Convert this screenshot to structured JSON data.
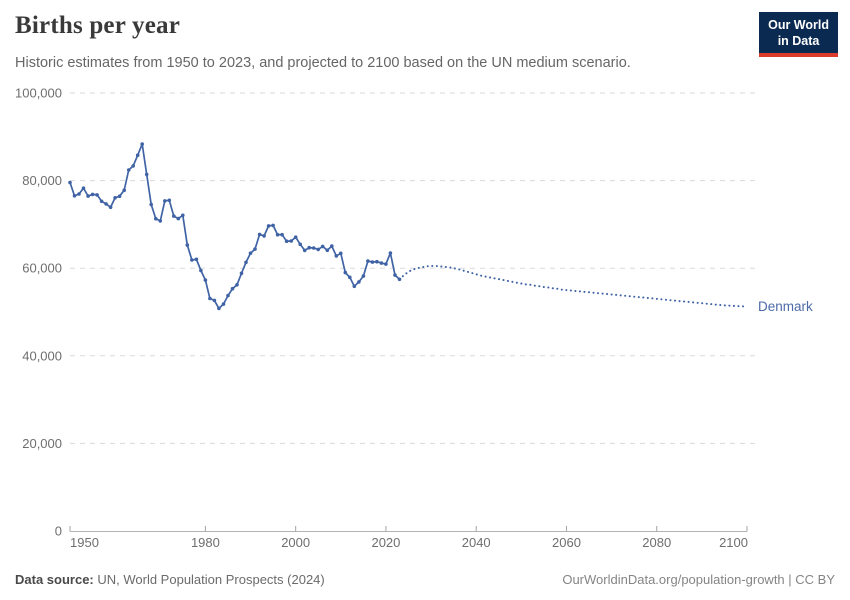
{
  "header": {
    "title": "Births per year",
    "subtitle": "Historic estimates from 1950 to 2023, and projected to 2100 based on the UN medium scenario.",
    "logo": {
      "line1": "Our World",
      "line2": "in Data"
    }
  },
  "footer": {
    "source_label": "Data source:",
    "source_text": " UN, World Population Prospects (2024)",
    "right_text": "OurWorldinData.org/population-growth | CC BY"
  },
  "colors": {
    "line": "#4063a5",
    "grid": "#dadada",
    "axis": "#b3b3b3",
    "tick": "#a3a3a3",
    "tick_label": "#6e6e6e",
    "entity_label": "#4d6ba8",
    "logo_bg": "#0b2a52",
    "logo_stripe": "#dc3a2a"
  },
  "chart_data": {
    "type": "line",
    "title": "Births per year",
    "subtitle": "Historic estimates from 1950 to 2023, and projected to 2100 based on the UN medium scenario.",
    "entity_label": "Denmark",
    "xlabel": "",
    "ylabel": "",
    "xlim": [
      1950,
      2100
    ],
    "ylim": [
      0,
      100000
    ],
    "x_ticks": [
      1950,
      1980,
      2000,
      2020,
      2040,
      2060,
      2080,
      2100
    ],
    "y_ticks": [
      0,
      20000,
      40000,
      60000,
      80000,
      100000
    ],
    "grid": true,
    "legend_position": "end-of-line label",
    "series": [
      {
        "name": "Denmark (historic estimates)",
        "style": "solid",
        "markers": true,
        "start_year": 1950,
        "values": [
          79558,
          76528,
          76942,
          78255,
          76471,
          76845,
          76725,
          75264,
          74681,
          73928,
          76077,
          76439,
          77808,
          82413,
          83356,
          85796,
          88332,
          81410,
          74543,
          71298,
          70802,
          75359,
          75505,
          71895,
          71327,
          72071,
          65267,
          61878,
          62036,
          59464,
          57293,
          53089,
          52658,
          50822,
          51800,
          53749,
          55312,
          56221,
          58844,
          61351,
          63433,
          64358,
          67726,
          67369,
          69666,
          69771,
          67638,
          67648,
          66174,
          66220,
          67084,
          65458,
          64075,
          64682,
          64609,
          64282,
          64984,
          64082,
          65038,
          62818,
          63411,
          58998,
          57916,
          55873,
          56870,
          58205,
          61614,
          61397,
          61476,
          61167,
          60937,
          63473,
          58430,
          57469
        ]
      },
      {
        "name": "Denmark (UN medium projection)",
        "style": "dotted",
        "markers": false,
        "start_year": 2024,
        "values": [
          58400,
          59200,
          59700,
          60000,
          60200,
          60400,
          60500,
          60500,
          60400,
          60300,
          60200,
          60000,
          59800,
          59500,
          59200,
          58900,
          58600,
          58300,
          58100,
          57900,
          57700,
          57500,
          57300,
          57100,
          56900,
          56700,
          56500,
          56300,
          56200,
          56000,
          55900,
          55700,
          55600,
          55400,
          55300,
          55100,
          55000,
          54900,
          54800,
          54700,
          54600,
          54500,
          54400,
          54300,
          54200,
          54100,
          54000,
          53900,
          53800,
          53700,
          53600,
          53500,
          53400,
          53300,
          53200,
          53100,
          53000,
          52900,
          52800,
          52700,
          52600,
          52500,
          52400,
          52300,
          52200,
          52100,
          52000,
          51900,
          51800,
          51700,
          51600,
          51500,
          51450,
          51400,
          51350,
          51300,
          51200
        ]
      }
    ]
  }
}
